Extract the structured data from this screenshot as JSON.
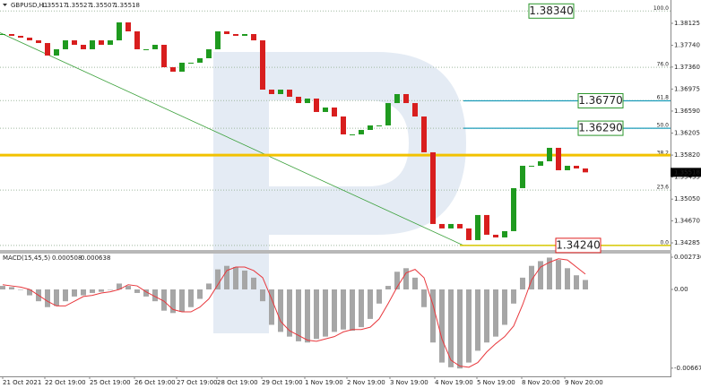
{
  "chart_data": [
    {
      "type": "candlestick",
      "title": "GBPUSD,H1",
      "header_values": [
        1.35517,
        1.35527,
        1.35507,
        1.35518
      ],
      "closes": [
        1.37937,
        1.37906,
        1.37874,
        1.37827,
        1.3778,
        1.37561,
        1.37671,
        1.37827,
        1.37749,
        1.37671,
        1.37827,
        1.37749,
        1.37827,
        1.38141,
        1.37984,
        1.37671,
        1.37671,
        1.37749,
        1.37357,
        1.37279,
        1.37436,
        1.37436,
        1.37514,
        1.37671,
        1.37984,
        1.37937,
        1.37906,
        1.37937,
        1.37827,
        1.36965,
        1.36887,
        1.36965,
        1.3684,
        1.3673,
        1.36809,
        1.36574,
        1.36652,
        1.36495,
        1.36182,
        1.36182,
        1.3626,
        1.36339,
        1.36339,
        1.3673,
        1.36887,
        1.3673,
        1.36495,
        1.35869,
        1.34615,
        1.34537,
        1.34615,
        1.34537,
        1.34333,
        1.34772,
        1.34427,
        1.3438,
        1.3449,
        1.35242,
        1.35633,
        1.35633,
        1.35712,
        1.35947,
        1.35555,
        1.35633,
        1.35586,
        1.35518
      ],
      "up_color": "#1f9a1f",
      "down_color": "#d81e1e",
      "xlim": [
        -0.3,
        74.5
      ],
      "xticks": [
        {
          "value": 0,
          "label": "21 Oct 2021"
        },
        {
          "value": 4.7,
          "label": "22 Oct 19:00"
        },
        {
          "value": 9.7,
          "label": "25 Oct 19:00"
        },
        {
          "value": 14.7,
          "label": "26 Oct 19:00"
        },
        {
          "value": 19.4,
          "label": "27 Oct 19:00"
        },
        {
          "value": 23.9,
          "label": "28 Oct 19:00"
        },
        {
          "value": 28.9,
          "label": "29 Oct 19:00"
        },
        {
          "value": 33.7,
          "label": "1 Nov 19:00"
        },
        {
          "value": 38.4,
          "label": "2 Nov 19:00"
        },
        {
          "value": 43.2,
          "label": "3 Nov 19:00"
        },
        {
          "value": 48.2,
          "label": "4 Nov 19:00"
        },
        {
          "value": 52.9,
          "label": "5 Nov 19:00"
        },
        {
          "value": 57.9,
          "label": "8 Nov 20:00"
        },
        {
          "value": 62.7,
          "label": "9 Nov 20:00"
        }
      ],
      "ylim": [
        1.3416,
        1.38517
      ],
      "yticks": [
        1.38125,
        {
          "value": 1.3774,
          "label": "1.37740"
        },
        {
          "value": 1.3736,
          "label": "1.37360"
        },
        1.36975,
        {
          "value": 1.3659,
          "label": "1.36590"
        },
        1.36205,
        {
          "value": 1.3582,
          "label": "1.35820"
        },
        1.35435,
        {
          "value": 1.3505,
          "label": "1.35050"
        },
        {
          "value": 1.3467,
          "label": "1.34670"
        },
        1.34285
      ],
      "last_price": 1.35518,
      "fib": {
        "low": 1.3424,
        "high": 1.3834,
        "color": "#9fb89f",
        "levels": [
          {
            "value": 0,
            "label": "0.0"
          },
          23.6,
          38.2,
          {
            "value": 50,
            "label": "50.0"
          },
          61.8,
          {
            "value": 76,
            "label": "76.0"
          },
          {
            "value": 100,
            "label": "100.0"
          }
        ]
      },
      "lines": [
        {
          "value": 1.3677,
          "color": "#1b9cb8"
        },
        {
          "value": 1.3629,
          "color": "#1b9cb8"
        },
        {
          "value": 1.3424,
          "color": "#d6c800"
        },
        {
          "value": 1.3582,
          "color": "#f2c200"
        }
      ],
      "price_labels": [
        {
          "value": 1.3834,
          "label": "1.38340",
          "color": "#2a962a"
        },
        {
          "value": 1.3677,
          "label": "1.36770",
          "color": "#2a962a"
        },
        {
          "value": 1.3629,
          "label": "1.36290",
          "color": "#2a962a"
        },
        {
          "value": 1.3424,
          "label": "1.34240",
          "color": "#e02020"
        }
      ],
      "trend_line": {
        "x": [
          -0.3,
          51.4
        ],
        "y": [
          1.3796,
          1.3424
        ],
        "color": "#3aa03a"
      }
    },
    {
      "type": "macd",
      "title": "MACD(15,45,5)",
      "header_values": [
        0.000508,
        0.000638
      ],
      "histogram": [
        0.0003,
        0.0002,
        0,
        -0.0005,
        -0.001,
        -0.0015,
        -0.0014,
        -0.001,
        -0.0006,
        -0.0005,
        -0.0003,
        -0.0002,
        0,
        0.0005,
        0.0003,
        -0.0003,
        -0.0006,
        -0.001,
        -0.0018,
        -0.002,
        -0.0019,
        -0.0015,
        -0.0008,
        0.0005,
        0.0017,
        0.002,
        0.0019,
        0.0016,
        0.001,
        -0.001,
        -0.003,
        -0.0036,
        -0.004,
        -0.0044,
        -0.0045,
        -0.0042,
        -0.004,
        -0.0036,
        -0.0034,
        -0.0035,
        -0.0032,
        -0.0025,
        -0.0012,
        0.0003,
        0.0015,
        0.0018,
        0.001,
        -0.0015,
        -0.0045,
        -0.0062,
        -0.0066,
        -0.0067,
        -0.0062,
        -0.0052,
        -0.0045,
        -0.004,
        -0.003,
        -0.0012,
        0.001,
        0.002,
        0.0024,
        0.0027,
        0.0025,
        0.0018,
        0.0012,
        0.0008
      ],
      "signal": [
        0.0004,
        0.0003,
        0.0002,
        0,
        -0.0005,
        -0.001,
        -0.0014,
        -0.0014,
        -0.001,
        -0.0006,
        -0.0005,
        -0.0003,
        -0.0002,
        0,
        0.0004,
        0.0003,
        -0.0002,
        -0.0006,
        -0.001,
        -0.0017,
        -0.0019,
        -0.0019,
        -0.0015,
        -0.0008,
        0.0004,
        0.0016,
        0.0019,
        0.0019,
        0.0016,
        0.001,
        -0.0008,
        -0.0027,
        -0.0035,
        -0.0039,
        -0.0043,
        -0.0044,
        -0.0042,
        -0.004,
        -0.0036,
        -0.0034,
        -0.0034,
        -0.0032,
        -0.0025,
        -0.0012,
        0.0002,
        0.0014,
        0.0017,
        0.001,
        -0.0013,
        -0.0042,
        -0.006,
        -0.0065,
        -0.0066,
        -0.0062,
        -0.0053,
        -0.0046,
        -0.004,
        -0.0031,
        -0.0013,
        0.0008,
        0.0019,
        0.0023,
        0.0026,
        0.0025,
        0.0019,
        0.0013
      ],
      "hist_color": "#a6a6a6",
      "signal_color": "#e8383d",
      "ylim": [
        -0.00737,
        0.00304
      ],
      "yticks": [
        0.002736,
        {
          "value": 0,
          "label": "0.00"
        },
        -0.006674
      ]
    }
  ]
}
